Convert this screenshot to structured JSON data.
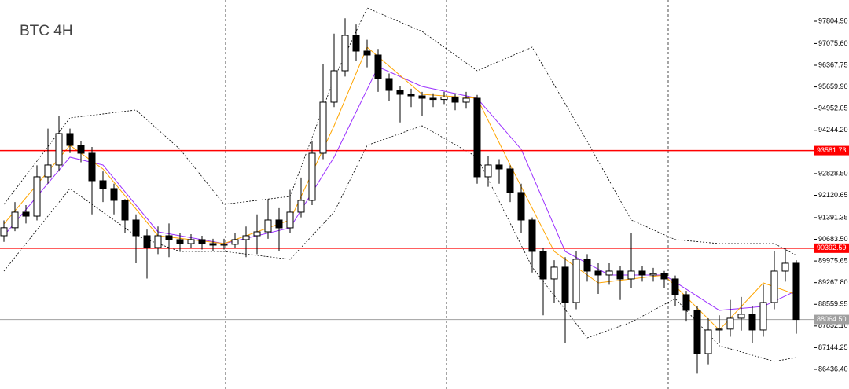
{
  "chart_data": {
    "type": "candlestick",
    "title": "BTC 4H",
    "open": [
      90800,
      91060,
      91570,
      91440,
      92725,
      93110,
      94136,
      93751,
      93494,
      92596,
      92340,
      91955,
      91313,
      90800,
      90415,
      90800,
      90672,
      90543,
      90672,
      90543,
      90492,
      90520,
      90672,
      90800,
      90928,
      91313,
      91057,
      91570,
      91955,
      93494,
      95162,
      96189,
      97343,
      96830,
      96702,
      95932,
      95547,
      95419,
      95367,
      95290,
      95250,
      95330,
      95162,
      95290,
      92725,
      93110,
      92981,
      92212,
      91313,
      90287,
      89389,
      89774,
      88619,
      90030,
      89645,
      89517,
      89645,
      89389,
      89645,
      89517,
      89560,
      89389,
      88876,
      88363,
      86951,
      87721,
      87750,
      88106,
      88234,
      87721,
      88619,
      89645,
      89902
    ],
    "high": [
      91300,
      91900,
      91800,
      93100,
      94300,
      94700,
      94300,
      93900,
      93700,
      92900,
      92500,
      92000,
      91500,
      91000,
      91100,
      91200,
      90900,
      90850,
      90800,
      90700,
      90700,
      90900,
      91100,
      91500,
      92000,
      91700,
      92300,
      92700,
      93900,
      96400,
      97400,
      97900,
      97700,
      97200,
      96900,
      96100,
      95700,
      95600,
      95500,
      95450,
      95500,
      95450,
      95500,
      95400,
      93400,
      93300,
      93100,
      92500,
      91400,
      90400,
      90000,
      90100,
      90300,
      90200,
      89900,
      89900,
      89800,
      90900,
      89800,
      89750,
      89650,
      89500,
      89000,
      88500,
      88100,
      88200,
      88700,
      88800,
      88500,
      89200,
      90300,
      90400,
      90000
    ],
    "low": [
      90600,
      90950,
      91200,
      91300,
      92500,
      92900,
      93500,
      93200,
      91500,
      91900,
      91500,
      90900,
      89900,
      89400,
      90200,
      90100,
      90300,
      90400,
      90350,
      90300,
      90350,
      90400,
      90100,
      90200,
      90700,
      90300,
      90900,
      91400,
      91800,
      93300,
      95000,
      96000,
      96500,
      96300,
      95500,
      95200,
      94500,
      95000,
      94700,
      95000,
      95100,
      94900,
      94950,
      92500,
      92400,
      92500,
      91900,
      90900,
      89600,
      88200,
      88600,
      87300,
      88400,
      89300,
      88900,
      89200,
      88700,
      89100,
      89300,
      89300,
      89100,
      88500,
      88000,
      86300,
      86600,
      87300,
      87500,
      87700,
      87300,
      87500,
      88400,
      89300,
      87600
    ],
    "close": [
      91060,
      91570,
      91440,
      92725,
      93110,
      94136,
      93751,
      93494,
      92596,
      92340,
      91955,
      91313,
      90800,
      90415,
      90800,
      90672,
      90543,
      90672,
      90543,
      90492,
      90520,
      90672,
      90800,
      90928,
      91313,
      91057,
      91570,
      91955,
      93494,
      95162,
      96189,
      97343,
      96830,
      96702,
      95932,
      95547,
      95419,
      95367,
      95290,
      95250,
      95330,
      95162,
      95290,
      92725,
      93110,
      92981,
      92212,
      91313,
      90287,
      89389,
      89774,
      88619,
      90030,
      89645,
      89517,
      89645,
      89389,
      89645,
      89517,
      89560,
      89389,
      88876,
      88363,
      86951,
      87721,
      87750,
      88106,
      88234,
      87721,
      88619,
      89645,
      89902,
      88064.5
    ],
    "lines": [
      {
        "color": "#000000",
        "dash": true,
        "x": [
          0,
          6,
          12,
          16,
          20,
          26,
          30,
          33,
          38,
          43,
          48,
          53,
          57,
          61,
          65,
          70,
          72
        ],
        "values": [
          91827,
          94649,
          94906,
          93623,
          91827,
          92083,
          95932,
          98241,
          97472,
          96189,
          96958,
          93879,
          91313,
          90672,
          90543,
          90543,
          90159
        ]
      },
      {
        "color": "#000000",
        "dash": true,
        "x": [
          0,
          6,
          12,
          16,
          20,
          26,
          30,
          33,
          38,
          43,
          48,
          53,
          57,
          61,
          65,
          70,
          72
        ],
        "values": [
          89645,
          92340,
          90800,
          90287,
          90287,
          90030,
          91570,
          93751,
          94392,
          93366,
          89774,
          87464,
          87977,
          88747,
          87208,
          86695,
          86823
        ]
      },
      {
        "color": "#9b30ff",
        "dash": false,
        "x": [
          0,
          6,
          9,
          14,
          20,
          26,
          30,
          34,
          38,
          43,
          47,
          51,
          55,
          60,
          65,
          69,
          72
        ],
        "values": [
          90800,
          93366,
          93110,
          90928,
          90543,
          91057,
          93366,
          96317,
          95676,
          95290,
          93623,
          90287,
          89517,
          89517,
          88363,
          88491,
          89004
        ]
      },
      {
        "color": "#ffa500",
        "dash": false,
        "x": [
          0,
          6,
          9,
          14,
          20,
          26,
          30,
          33,
          38,
          43,
          46,
          50,
          54,
          60,
          65,
          69,
          72
        ],
        "values": [
          91185,
          93751,
          92981,
          90800,
          90543,
          91313,
          94392,
          96958,
          95419,
          95290,
          93110,
          90287,
          89260,
          89517,
          87721,
          89260,
          88876
        ]
      }
    ],
    "hlines": [
      {
        "value": 93581.73,
        "color": "#ff0000"
      },
      {
        "value": 90392.59,
        "color": "#ff0000"
      },
      {
        "value": 88064.5,
        "label": "88064.50",
        "color": "#a0a0a0"
      }
    ],
    "ylim": [
      85795,
      98498
    ],
    "yticks": [
      {
        "value": 97804.9,
        "label": "97804.90"
      },
      {
        "value": 97075.6,
        "label": "97075.60"
      },
      96367.75,
      {
        "value": 95659.9,
        "label": "95659.90"
      },
      94952.05,
      {
        "value": 94244.2,
        "label": "94244.20"
      },
      {
        "value": 92828.5,
        "label": "92828.50"
      },
      92120.65,
      91391.35,
      {
        "value": 90683.5,
        "label": "90683.50"
      },
      89975.65,
      {
        "value": 89267.8,
        "label": "89267.80"
      },
      88559.95,
      {
        "value": 87852.1,
        "label": "87852.10"
      },
      87144.25,
      {
        "value": 86436.4,
        "label": "86436.40"
      }
    ]
  }
}
